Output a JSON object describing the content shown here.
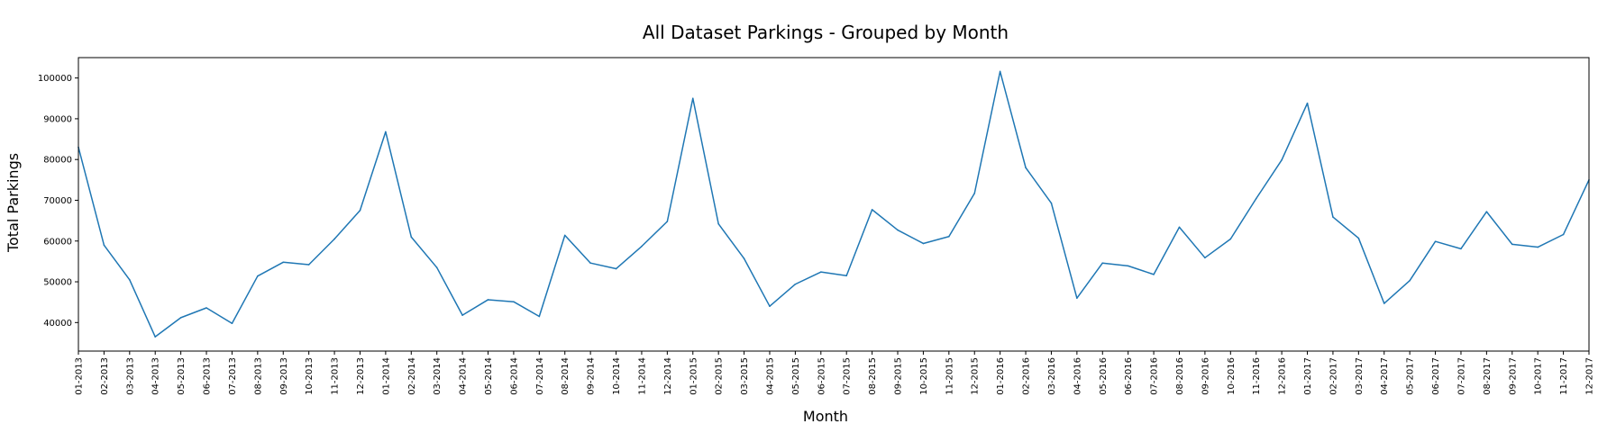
{
  "chart_data": {
    "type": "line",
    "title": "All Dataset Parkings - Grouped by Month",
    "xlabel": "Month",
    "ylabel": "Total Parkings",
    "ylim": [
      33000,
      105000
    ],
    "yticks": [
      40000,
      50000,
      60000,
      70000,
      80000,
      90000,
      100000
    ],
    "ytick_labels": [
      "40000",
      "50000",
      "60000",
      "70000",
      "80000",
      "90000",
      "100000"
    ],
    "grid": false,
    "line_color": "#1f77b4",
    "categories": [
      "01-2013",
      "02-2013",
      "03-2013",
      "04-2013",
      "05-2013",
      "06-2013",
      "07-2013",
      "08-2013",
      "09-2013",
      "10-2013",
      "11-2013",
      "12-2013",
      "01-2014",
      "02-2014",
      "03-2014",
      "04-2014",
      "05-2014",
      "06-2014",
      "07-2014",
      "08-2014",
      "09-2014",
      "10-2014",
      "11-2014",
      "12-2014",
      "01-2015",
      "02-2015",
      "03-2015",
      "04-2015",
      "05-2015",
      "06-2015",
      "07-2015",
      "08-2015",
      "09-2015",
      "10-2015",
      "11-2015",
      "12-2015",
      "01-2016",
      "02-2016",
      "03-2016",
      "04-2016",
      "05-2016",
      "06-2016",
      "07-2016",
      "08-2016",
      "09-2016",
      "10-2016",
      "11-2016",
      "12-2016",
      "01-2017",
      "02-2017",
      "03-2017",
      "04-2017",
      "05-2017",
      "06-2017",
      "07-2017",
      "08-2017",
      "09-2017",
      "10-2017",
      "11-2017",
      "12-2017"
    ],
    "series": [
      {
        "values": [
          83000,
          59000,
          50500,
          36500,
          41200,
          43600,
          39800,
          51400,
          54800,
          54200,
          60500,
          67500,
          86800,
          61000,
          53500,
          41800,
          45600,
          45100,
          41500,
          61400,
          54600,
          53200,
          58700,
          64800,
          95000,
          64200,
          55700,
          44000,
          49400,
          52400,
          51500,
          67700,
          62700,
          59400,
          61100,
          71700,
          101600,
          78000,
          69300,
          46000,
          54600,
          53900,
          51800,
          63400,
          55900,
          60500,
          70400,
          79900,
          93800,
          65900,
          60700,
          44700,
          50300,
          59900,
          58100,
          67200,
          59200,
          58500,
          61600,
          75000
        ]
      }
    ]
  }
}
